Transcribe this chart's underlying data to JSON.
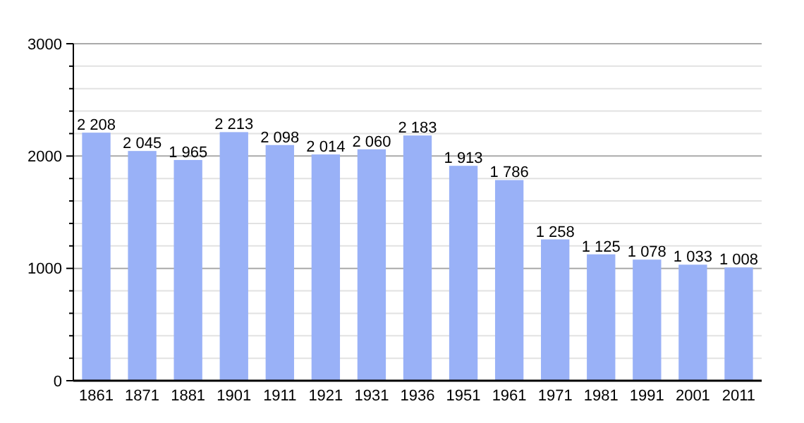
{
  "chart_data": {
    "type": "bar",
    "categories": [
      "1861",
      "1871",
      "1881",
      "1901",
      "1911",
      "1921",
      "1931",
      "1936",
      "1951",
      "1961",
      "1971",
      "1981",
      "1991",
      "2001",
      "2011"
    ],
    "values": [
      2208,
      2045,
      1965,
      2213,
      2098,
      2014,
      2060,
      2183,
      1913,
      1786,
      1258,
      1125,
      1078,
      1033,
      1008
    ],
    "value_labels": [
      "2 208",
      "2 045",
      "1 965",
      "2 213",
      "2 098",
      "2 014",
      "2 060",
      "2 183",
      "1 913",
      "1 786",
      "1 258",
      "1 125",
      "1 078",
      "1 033",
      "1 008"
    ],
    "color": "#99b1f7",
    "ylim": [
      0,
      3000
    ],
    "yticks": [
      0,
      {
        "value": 200,
        "label": null
      },
      {
        "value": 400,
        "label": null
      },
      {
        "value": 600,
        "label": null
      },
      {
        "value": 800,
        "label": null
      },
      1000,
      {
        "value": 1200,
        "label": null
      },
      {
        "value": 1400,
        "label": null
      },
      {
        "value": 1600,
        "label": null
      },
      {
        "value": 1800,
        "label": null
      },
      2000,
      {
        "value": 2200,
        "label": null
      },
      {
        "value": 2400,
        "label": null
      },
      {
        "value": 2600,
        "label": null
      },
      {
        "value": 2800,
        "label": null
      },
      3000
    ],
    "grid": true
  }
}
